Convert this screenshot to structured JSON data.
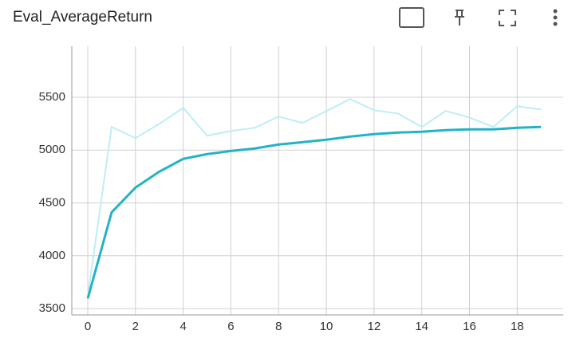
{
  "chart_data": {
    "type": "line",
    "title": "Eval_AverageReturn",
    "x": [
      0,
      1,
      2,
      3,
      4,
      5,
      6,
      7,
      8,
      9,
      10,
      11,
      12,
      13,
      14,
      15,
      16,
      17,
      18,
      19
    ],
    "series": [
      {
        "color": "#bdeef4",
        "values": [
          3620,
          5219,
          5113,
          5249,
          5400,
          5136,
          5181,
          5211,
          5317,
          5257,
          5370,
          5483,
          5377,
          5347,
          5219,
          5370,
          5309,
          5219,
          5415,
          5385
        ]
      },
      {
        "color": "#23b3c6",
        "values": [
          3596,
          4411,
          4645,
          4796,
          4917,
          4962,
          4992,
          5015,
          5053,
          5075,
          5098,
          5128,
          5151,
          5166,
          5174,
          5189,
          5196,
          5196,
          5211,
          5219
        ]
      }
    ],
    "xlim": [
      -0.67,
      19.93
    ],
    "xticks": [
      0,
      2,
      4,
      6,
      8,
      10,
      12,
      14,
      16,
      18
    ],
    "ylim": [
      3440,
      5983
    ],
    "yticks": [
      3500,
      4000,
      4500,
      5000,
      5500
    ],
    "grid": true
  }
}
